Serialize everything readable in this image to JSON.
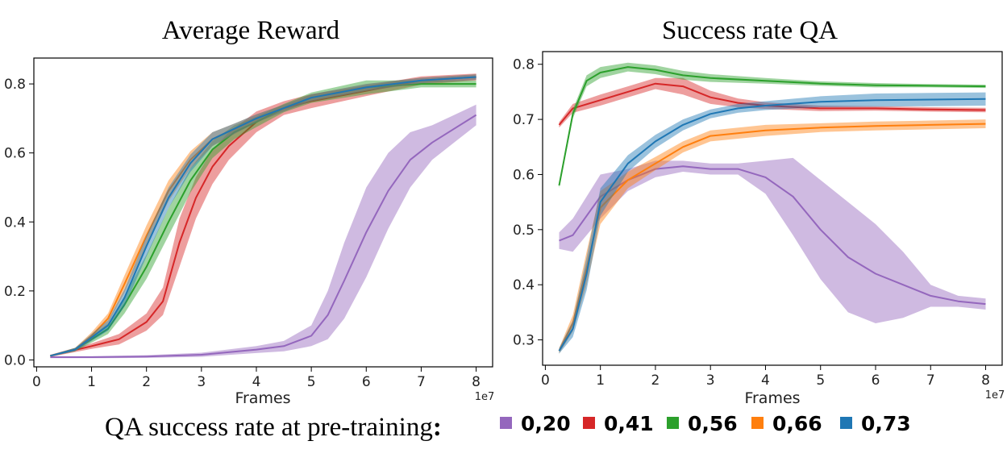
{
  "legend": {
    "title": "QA success rate at pre-training",
    "title_colon": ":",
    "entries": [
      {
        "label": "0,20",
        "color": "#9467bd"
      },
      {
        "label": "0,41",
        "color": "#d62728"
      },
      {
        "label": "0,56",
        "color": "#2ca02c"
      },
      {
        "label": "0,66",
        "color": "#ff7f0e"
      },
      {
        "label": "0,73",
        "color": "#1f77b4"
      }
    ]
  },
  "chart_data": [
    {
      "type": "line",
      "title": "Average Reward",
      "xlabel": "Frames",
      "x_offset_label": "1e7",
      "xlim": [
        -0.05,
        8.3
      ],
      "ylim": [
        -0.02,
        0.875
      ],
      "xticks": [
        0,
        1,
        2,
        3,
        4,
        5,
        6,
        7,
        8
      ],
      "yticks": [
        0.0,
        0.2,
        0.4,
        0.6,
        0.8
      ],
      "xtick_labels": [
        "0",
        "1",
        "2",
        "3",
        "4",
        "5",
        "6",
        "7",
        "8"
      ],
      "ytick_labels": [
        "0.0",
        "0.2",
        "0.4",
        "0.6",
        "0.8"
      ],
      "series": [
        {
          "name": "0,20",
          "color": "#9467bd",
          "x": [
            0.25,
            1,
            2,
            3,
            4,
            4.5,
            5,
            5.3,
            5.6,
            6,
            6.4,
            6.8,
            7.2,
            7.6,
            8
          ],
          "mean": [
            0.008,
            0.008,
            0.01,
            0.015,
            0.03,
            0.04,
            0.07,
            0.13,
            0.23,
            0.37,
            0.49,
            0.58,
            0.63,
            0.67,
            0.71
          ],
          "spread": [
            0.003,
            0.003,
            0.004,
            0.006,
            0.01,
            0.015,
            0.03,
            0.07,
            0.11,
            0.13,
            0.11,
            0.08,
            0.05,
            0.04,
            0.03
          ]
        },
        {
          "name": "0,41",
          "color": "#d62728",
          "x": [
            0.25,
            1,
            1.5,
            2,
            2.3,
            2.6,
            2.9,
            3.2,
            3.5,
            4,
            4.5,
            5,
            6,
            7,
            8
          ],
          "mean": [
            0.012,
            0.04,
            0.06,
            0.11,
            0.17,
            0.34,
            0.47,
            0.56,
            0.62,
            0.69,
            0.73,
            0.75,
            0.78,
            0.81,
            0.82
          ],
          "spread": [
            0.003,
            0.008,
            0.015,
            0.025,
            0.04,
            0.07,
            0.06,
            0.05,
            0.04,
            0.03,
            0.02,
            0.02,
            0.015,
            0.012,
            0.01
          ]
        },
        {
          "name": "0,56",
          "color": "#2ca02c",
          "x": [
            0.25,
            0.7,
            1.0,
            1.3,
            1.6,
            2.0,
            2.4,
            2.8,
            3.2,
            3.6,
            4.0,
            4.5,
            5,
            6,
            7,
            8
          ],
          "mean": [
            0.012,
            0.03,
            0.06,
            0.09,
            0.16,
            0.27,
            0.4,
            0.52,
            0.61,
            0.66,
            0.69,
            0.73,
            0.76,
            0.79,
            0.8,
            0.8
          ],
          "spread": [
            0.002,
            0.005,
            0.01,
            0.015,
            0.025,
            0.035,
            0.04,
            0.035,
            0.025,
            0.02,
            0.015,
            0.012,
            0.015,
            0.02,
            0.01,
            0.01
          ]
        },
        {
          "name": "0,66",
          "color": "#ff7f0e",
          "x": [
            0.25,
            0.7,
            1.0,
            1.3,
            1.6,
            2.0,
            2.4,
            2.8,
            3.2,
            3.6,
            4.0,
            4.5,
            5,
            6,
            7,
            8
          ],
          "mean": [
            0.012,
            0.03,
            0.07,
            0.12,
            0.22,
            0.36,
            0.49,
            0.58,
            0.64,
            0.67,
            0.7,
            0.73,
            0.76,
            0.79,
            0.81,
            0.82
          ],
          "spread": [
            0.002,
            0.005,
            0.01,
            0.015,
            0.025,
            0.03,
            0.03,
            0.025,
            0.02,
            0.015,
            0.012,
            0.01,
            0.01,
            0.01,
            0.008,
            0.008
          ]
        },
        {
          "name": "0,73",
          "color": "#1f77b4",
          "x": [
            0.25,
            0.7,
            1.0,
            1.3,
            1.6,
            2.0,
            2.4,
            2.8,
            3.2,
            3.6,
            4.0,
            4.5,
            5,
            6,
            7,
            8
          ],
          "mean": [
            0.012,
            0.03,
            0.065,
            0.1,
            0.18,
            0.33,
            0.47,
            0.57,
            0.64,
            0.67,
            0.7,
            0.73,
            0.76,
            0.79,
            0.81,
            0.82
          ],
          "spread": [
            0.002,
            0.005,
            0.01,
            0.015,
            0.025,
            0.03,
            0.03,
            0.025,
            0.02,
            0.015,
            0.012,
            0.01,
            0.01,
            0.01,
            0.008,
            0.008
          ]
        }
      ]
    },
    {
      "type": "line",
      "title": "Success rate QA",
      "xlabel": "Frames",
      "x_offset_label": "1e7",
      "xlim": [
        -0.05,
        8.3
      ],
      "ylim": [
        0.254,
        0.823
      ],
      "xticks": [
        0,
        1,
        2,
        3,
        4,
        5,
        6,
        7,
        8
      ],
      "yticks": [
        0.3,
        0.4,
        0.5,
        0.6,
        0.7,
        0.8
      ],
      "xtick_labels": [
        "0",
        "1",
        "2",
        "3",
        "4",
        "5",
        "6",
        "7",
        "8"
      ],
      "ytick_labels": [
        "0.3",
        "0.4",
        "0.5",
        "0.6",
        "0.7",
        "0.8"
      ],
      "series": [
        {
          "name": "0,20",
          "color": "#9467bd",
          "x": [
            0.25,
            0.5,
            1.0,
            1.5,
            2.0,
            2.5,
            3.0,
            3.5,
            4.0,
            4.5,
            5.0,
            5.5,
            6.0,
            6.5,
            7.0,
            7.5,
            8.0
          ],
          "mean": [
            0.48,
            0.49,
            0.56,
            0.59,
            0.61,
            0.615,
            0.61,
            0.61,
            0.595,
            0.56,
            0.5,
            0.45,
            0.42,
            0.4,
            0.38,
            0.37,
            0.365
          ],
          "spread": [
            0.015,
            0.03,
            0.04,
            0.02,
            0.015,
            0.01,
            0.01,
            0.01,
            0.03,
            0.07,
            0.09,
            0.1,
            0.09,
            0.06,
            0.02,
            0.01,
            0.01
          ]
        },
        {
          "name": "0,41",
          "color": "#d62728",
          "x": [
            0.25,
            0.5,
            1.0,
            1.5,
            2.0,
            2.5,
            3.0,
            3.5,
            4.0,
            5.0,
            6.0,
            7.0,
            8.0
          ],
          "mean": [
            0.69,
            0.72,
            0.735,
            0.75,
            0.765,
            0.76,
            0.74,
            0.73,
            0.725,
            0.72,
            0.72,
            0.718,
            0.717
          ],
          "spread": [
            0.005,
            0.008,
            0.01,
            0.01,
            0.01,
            0.015,
            0.012,
            0.008,
            0.006,
            0.005,
            0.004,
            0.004,
            0.004
          ]
        },
        {
          "name": "0,56",
          "color": "#2ca02c",
          "x": [
            0.25,
            0.5,
            0.75,
            1.0,
            1.5,
            2.0,
            2.5,
            3.0,
            4.0,
            5.0,
            6.0,
            7.0,
            8.0
          ],
          "mean": [
            0.58,
            0.71,
            0.77,
            0.785,
            0.795,
            0.79,
            0.78,
            0.775,
            0.77,
            0.765,
            0.762,
            0.761,
            0.76
          ],
          "spread": [
            0.005,
            0.008,
            0.01,
            0.01,
            0.008,
            0.008,
            0.008,
            0.007,
            0.005,
            0.004,
            0.004,
            0.003,
            0.003
          ]
        },
        {
          "name": "0,66",
          "color": "#ff7f0e",
          "x": [
            0.25,
            0.5,
            0.75,
            1.0,
            1.5,
            2.0,
            2.5,
            3.0,
            4.0,
            5.0,
            6.0,
            7.0,
            8.0
          ],
          "mean": [
            0.28,
            0.33,
            0.43,
            0.54,
            0.59,
            0.62,
            0.65,
            0.67,
            0.68,
            0.685,
            0.688,
            0.69,
            0.692
          ],
          "spread": [
            0.005,
            0.015,
            0.03,
            0.03,
            0.015,
            0.012,
            0.01,
            0.01,
            0.01,
            0.008,
            0.008,
            0.008,
            0.008
          ]
        },
        {
          "name": "0,73",
          "color": "#1f77b4",
          "x": [
            0.25,
            0.5,
            0.75,
            1.0,
            1.5,
            2.0,
            2.5,
            3.0,
            3.5,
            4.0,
            5.0,
            6.0,
            7.0,
            8.0
          ],
          "mean": [
            0.28,
            0.32,
            0.42,
            0.55,
            0.62,
            0.66,
            0.69,
            0.71,
            0.72,
            0.725,
            0.732,
            0.735,
            0.736,
            0.737
          ],
          "spread": [
            0.005,
            0.015,
            0.03,
            0.025,
            0.015,
            0.012,
            0.01,
            0.008,
            0.008,
            0.008,
            0.01,
            0.012,
            0.012,
            0.012
          ]
        }
      ]
    }
  ]
}
